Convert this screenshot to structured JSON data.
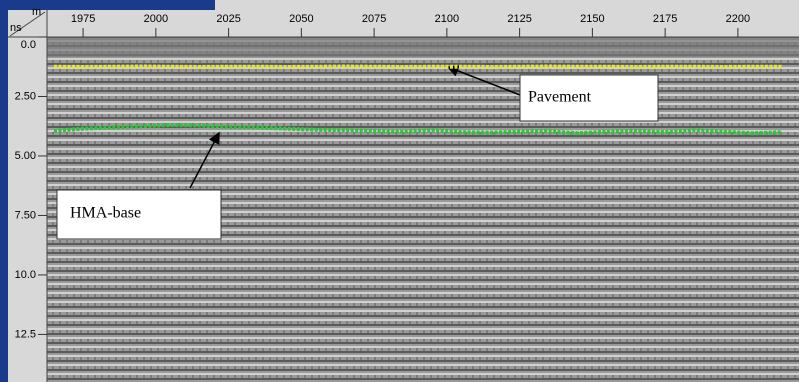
{
  "chart_data": {
    "type": "line",
    "xlabel": "m",
    "ylabel": "ns",
    "x": [
      1965,
      1975,
      1985,
      1995,
      2005,
      2015,
      2025,
      2035,
      2045,
      2055,
      2065,
      2075,
      2085,
      2095,
      2105,
      2115,
      2125,
      2135,
      2145,
      2155,
      2165,
      2175,
      2185,
      2195,
      2205,
      2215
    ],
    "series": [
      {
        "color": "#e4e43a",
        "values": [
          1.25,
          1.26,
          1.25,
          1.24,
          1.25,
          1.26,
          1.25,
          1.25,
          1.26,
          1.25,
          1.24,
          1.25,
          1.26,
          1.25,
          1.25,
          1.26,
          1.25,
          1.24,
          1.25,
          1.25,
          1.26,
          1.25,
          1.25,
          1.26,
          1.25,
          1.25
        ]
      },
      {
        "color": "#2fc33a",
        "values": [
          3.95,
          3.85,
          3.8,
          3.75,
          3.7,
          3.72,
          3.78,
          3.8,
          3.85,
          3.9,
          3.92,
          3.95,
          3.98,
          3.92,
          4.0,
          4.02,
          3.98,
          3.95,
          4.05,
          3.98,
          3.95,
          4.0,
          3.92,
          3.98,
          4.05,
          4.0
        ]
      }
    ],
    "xlim": [
      1962.6,
      2221
    ],
    "xticks": [
      1975,
      2000,
      2025,
      2050,
      2075,
      2100,
      2125,
      2150,
      2175,
      2200
    ],
    "ylim": [
      0,
      14.5
    ],
    "yticks": [
      {
        "value": 0,
        "label": "0.0"
      },
      {
        "value": 2.5,
        "label": "2.50"
      },
      {
        "value": 5,
        "label": "5.00"
      },
      {
        "value": 7.5,
        "label": "7.50"
      },
      {
        "value": 10,
        "label": "10.0"
      },
      {
        "value": 12.5,
        "label": "12.5"
      }
    ],
    "annotations": [
      {
        "text": "Pavement"
      },
      {
        "text": "HMA-base"
      }
    ]
  }
}
